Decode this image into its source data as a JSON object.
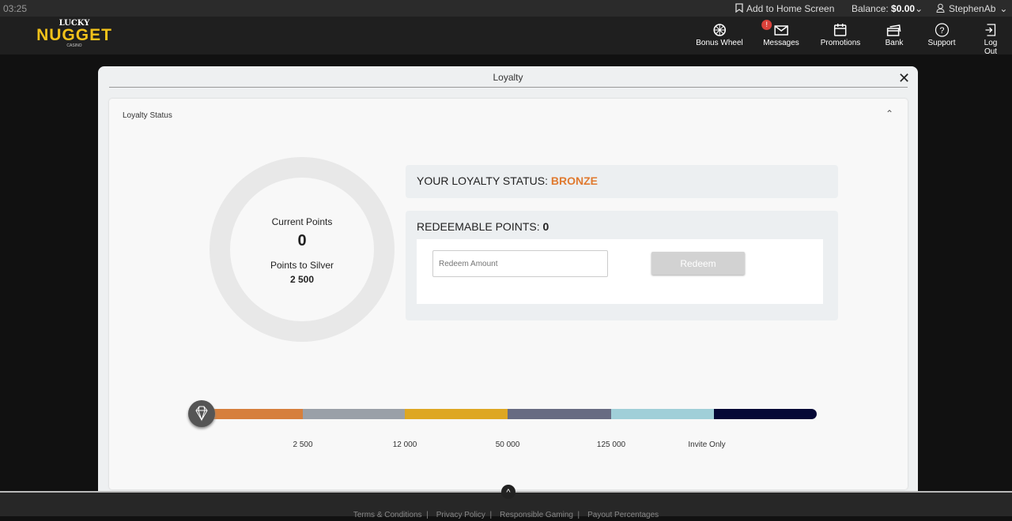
{
  "topbar": {
    "time": "03:25",
    "add_home": "Add to Home Screen",
    "balance_label": "Balance:",
    "balance_value": "$0.00",
    "username": "StephenAb"
  },
  "logo": {
    "line1": "LUCKY",
    "line2": "NUGGET",
    "line3": "CASINO"
  },
  "nav": [
    {
      "label": "Bonus Wheel",
      "icon": "wheel-icon"
    },
    {
      "label": "Messages",
      "icon": "envelope-icon",
      "badge": "!"
    },
    {
      "label": "Promotions",
      "icon": "calendar-icon"
    },
    {
      "label": "Bank",
      "icon": "cards-icon"
    },
    {
      "label": "Support",
      "icon": "question-icon"
    },
    {
      "label": "Log Out",
      "icon": "logout-icon"
    }
  ],
  "modal": {
    "title": "Loyalty",
    "section": "Loyalty Status"
  },
  "donut": {
    "current_label": "Current Points",
    "current_value": "0",
    "next_label": "Points to Silver",
    "next_value": "2 500",
    "progress": 0
  },
  "status": {
    "label": "YOUR LOYALTY STATUS:",
    "value": "BRONZE",
    "color": "#e07a30"
  },
  "redeem": {
    "label": "REDEEMABLE POINTS:",
    "value": "0",
    "placeholder": "Redeem Amount",
    "button": "Redeem"
  },
  "tiers": {
    "colors": [
      "#d67f3c",
      "#9aa0a8",
      "#dea722",
      "#676b82",
      "#a0cfd8",
      "#050836"
    ],
    "ticks": [
      "2 500",
      "12 000",
      "50 000",
      "125 000",
      "Invite Only"
    ]
  },
  "footer": {
    "links": [
      "Terms & Conditions",
      "Privacy Policy",
      "Responsible Gaming",
      "Payout Percentages"
    ]
  }
}
